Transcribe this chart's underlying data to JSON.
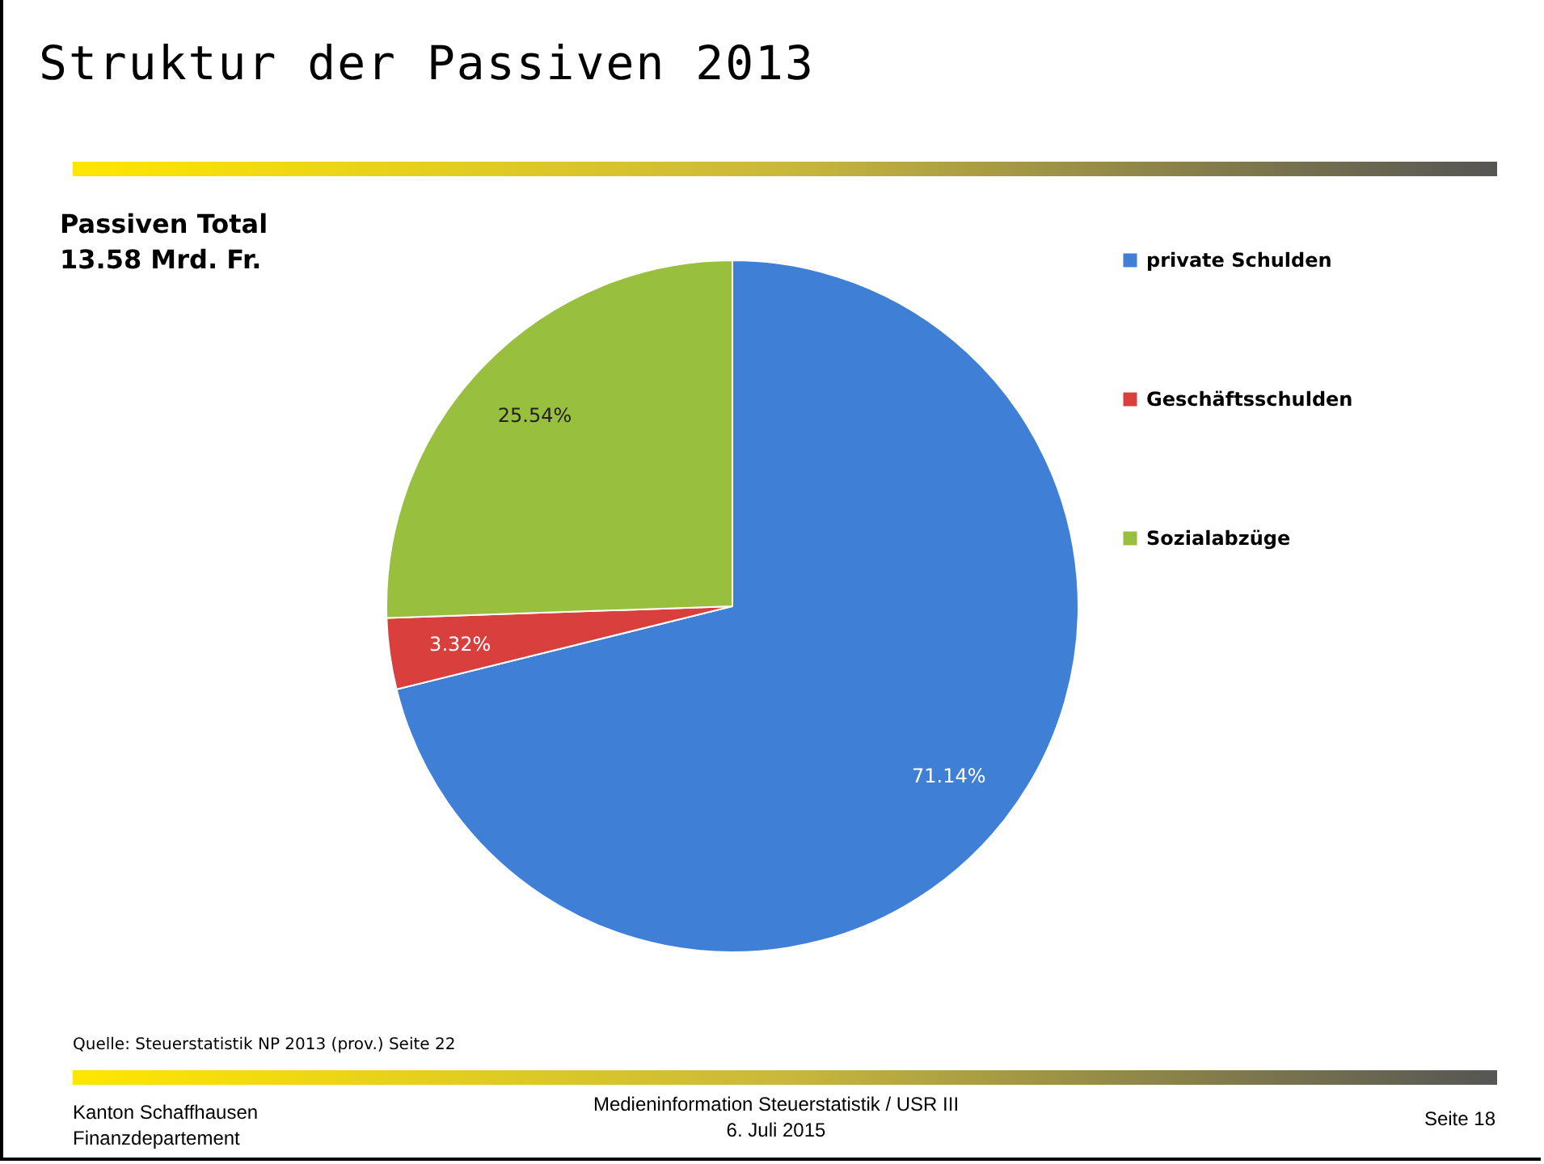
{
  "chart_data": {
    "type": "pie",
    "title": "Struktur der Passiven 2013",
    "subtitle": "Passiven Total 13.58 Mrd. Fr.",
    "categories": [
      "private Schulden",
      "Geschäftsschulden",
      "Sozialabzüge"
    ],
    "values": [
      71.14,
      3.32,
      25.54
    ],
    "colors": [
      "#3f7fd6",
      "#d9403d",
      "#99bf3f"
    ],
    "value_labels": [
      "71.14%",
      "3.32%",
      "25.54%"
    ],
    "legend": "right",
    "annotations": [
      "Quelle: Steuerstatistik NP 2013 (prov.) Seite 22",
      "Kanton Schaffhausen",
      "Finanzdepartement",
      "Medieninformation Steuerstatistik / USR III",
      "6. Juli 2015",
      "Seite 18"
    ]
  }
}
